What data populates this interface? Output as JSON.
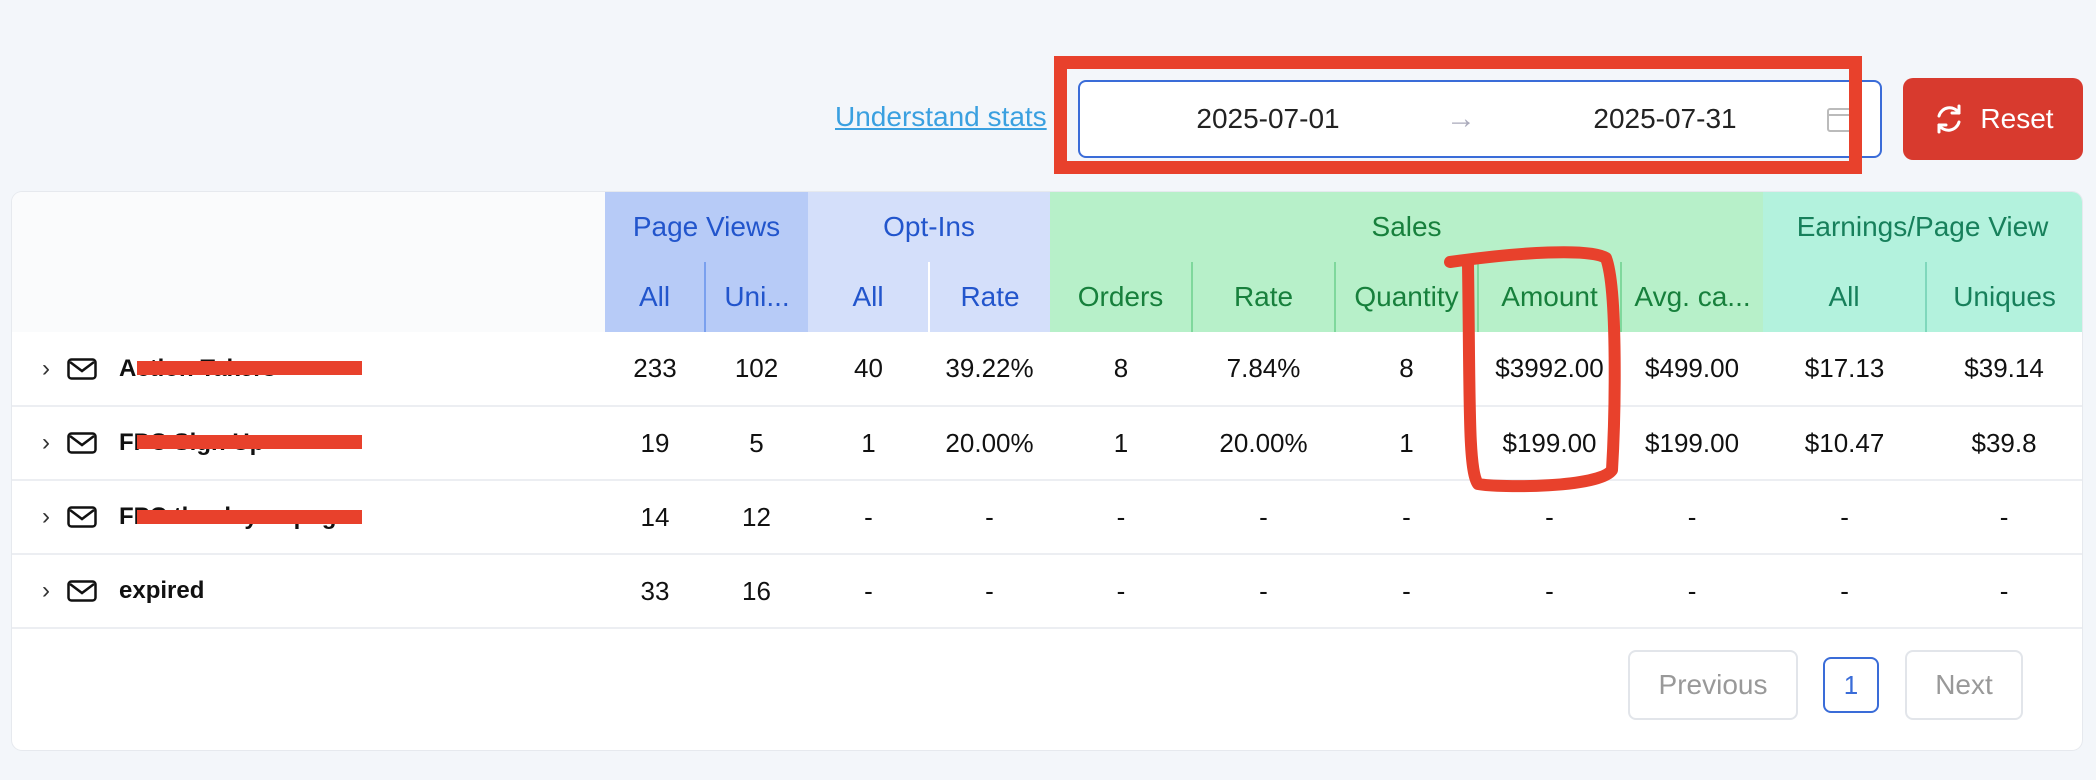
{
  "toolbar": {
    "stats_link": "Understand stats",
    "date_start": "2025-07-01",
    "date_end": "2025-07-31",
    "reset_label": "Reset"
  },
  "table": {
    "groups": [
      "Page Views",
      "Opt-Ins",
      "Sales",
      "Earnings/Page View"
    ],
    "subheaders": [
      "All",
      "Uni...",
      "All",
      "Rate",
      "Orders",
      "Rate",
      "Quantity",
      "Amount",
      "Avg. ca...",
      "All",
      "Uniques"
    ],
    "rows": [
      {
        "name": "Action Takers",
        "cells": [
          "233",
          "102",
          "40",
          "39.22%",
          "8",
          "7.84%",
          "8",
          "$3992.00",
          "$499.00",
          "$17.13",
          "$39.14"
        ]
      },
      {
        "name": "FPC Sign Up",
        "cells": [
          "19",
          "5",
          "1",
          "20.00%",
          "1",
          "20.00%",
          "1",
          "$199.00",
          "$199.00",
          "$10.47",
          "$39.8"
        ]
      },
      {
        "name": "FPC thank you page",
        "cells": [
          "14",
          "12",
          "-",
          "-",
          "-",
          "-",
          "-",
          "-",
          "-",
          "-",
          "-"
        ]
      },
      {
        "name": "expired",
        "cells": [
          "33",
          "16",
          "-",
          "-",
          "-",
          "-",
          "-",
          "-",
          "-",
          "-",
          "-"
        ]
      }
    ]
  },
  "pagination": {
    "previous": "Previous",
    "current_page": "1",
    "next": "Next"
  },
  "colors": {
    "accent": "#3a6cd8",
    "reset": "#d83a2e",
    "annotation": "#e8412c"
  }
}
